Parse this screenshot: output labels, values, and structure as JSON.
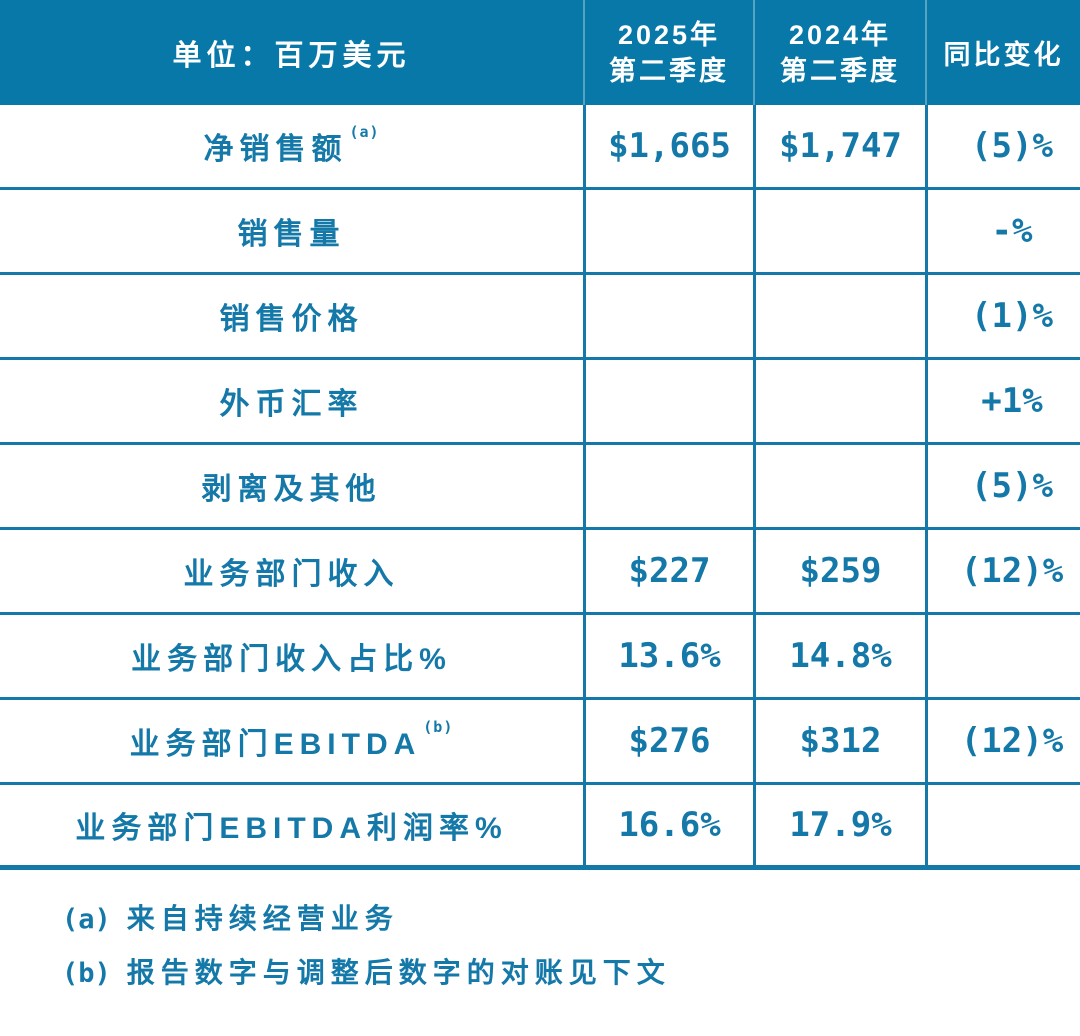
{
  "colors": {
    "accent_blue": "#1478a8",
    "header_background": "#0878a9",
    "header_text": "#ffffff"
  },
  "table": {
    "header": {
      "unit": "单位：百万美元",
      "col_2025": {
        "line1": "2025年",
        "line2": "第二季度"
      },
      "col_2024": {
        "line1": "2024年",
        "line2": "第二季度"
      },
      "col_yoy": "同比变化"
    },
    "rows": [
      {
        "label": "净销售额",
        "sup": "(a)",
        "q2_2025": "$1,665",
        "q2_2024": "$1,747",
        "yoy": "(5)%"
      },
      {
        "label": "销售量",
        "sup": "",
        "q2_2025": "",
        "q2_2024": "",
        "yoy": "-%"
      },
      {
        "label": "销售价格",
        "sup": "",
        "q2_2025": "",
        "q2_2024": "",
        "yoy": "(1)%"
      },
      {
        "label": "外币汇率",
        "sup": "",
        "q2_2025": "",
        "q2_2024": "",
        "yoy": "+1%"
      },
      {
        "label": "剥离及其他",
        "sup": "",
        "q2_2025": "",
        "q2_2024": "",
        "yoy": "(5)%"
      },
      {
        "label": "业务部门收入",
        "sup": "",
        "q2_2025": "$227",
        "q2_2024": "$259",
        "yoy": "(12)%"
      },
      {
        "label": "业务部门收入占比%",
        "sup": "",
        "q2_2025": "13.6%",
        "q2_2024": "14.8%",
        "yoy": ""
      },
      {
        "label": "业务部门EBITDA",
        "sup": "(b)",
        "q2_2025": "$276",
        "q2_2024": "$312",
        "yoy": "(12)%"
      },
      {
        "label": "业务部门EBITDA利润率%",
        "sup": "",
        "q2_2025": "16.6%",
        "q2_2024": "17.9%",
        "yoy": ""
      }
    ]
  },
  "footnotes": [
    {
      "marker": "(a)",
      "text": "来自持续经营业务"
    },
    {
      "marker": "(b)",
      "text": "报告数字与调整后数字的对账见下文"
    }
  ]
}
